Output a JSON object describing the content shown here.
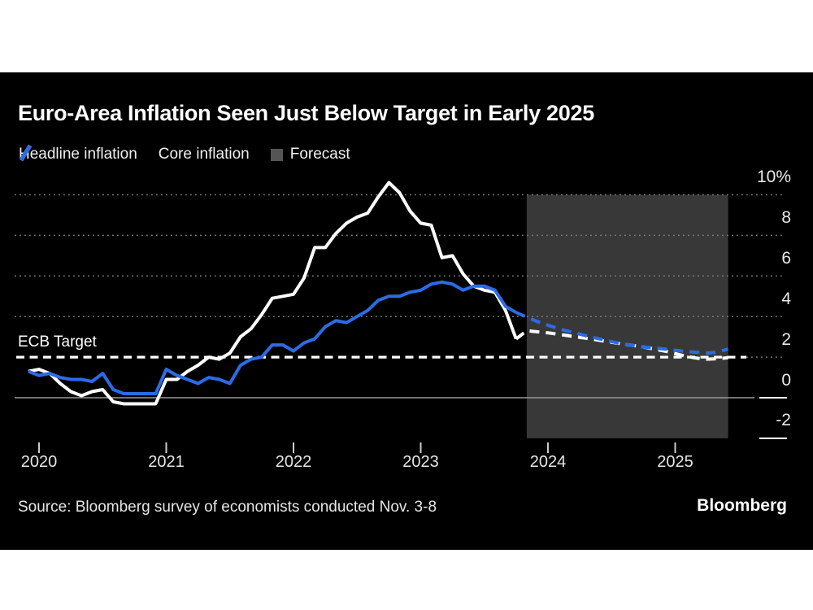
{
  "card": {
    "title": "Euro-Area Inflation Seen Just Below Target in Early 2025",
    "source": "Source: Bloomberg survey of economists conducted Nov. 3-8",
    "brand": "Bloomberg"
  },
  "legend": {
    "items": [
      {
        "label": "Headline inflation",
        "swatch": "line-slash",
        "color": "#ffffff"
      },
      {
        "label": "Core inflation",
        "swatch": "line-slash",
        "color": "#2b6be6"
      },
      {
        "label": "Forecast",
        "swatch": "box",
        "color": "#555555"
      }
    ]
  },
  "annotation": {
    "ecb_target_label": "ECB Target"
  },
  "colors": {
    "background": "#000000",
    "page": "#ffffff",
    "headline": "#ffffff",
    "core": "#2b6be6",
    "forecast_region": "#383838",
    "gridline": "#7d7d7d",
    "zero_line": "#999999"
  },
  "chart_data": {
    "type": "line",
    "title": "Euro-Area Inflation Seen Just Below Target in Early 2025",
    "x_start_month": "2019-12",
    "x_ticks": [
      "2020",
      "2021",
      "2022",
      "2023",
      "2024",
      "2025"
    ],
    "y_ticks": [
      {
        "label": "10%",
        "value": 10
      },
      {
        "label": "8",
        "value": 8
      },
      {
        "label": "6",
        "value": 6
      },
      {
        "label": "4",
        "value": 4
      },
      {
        "label": "2",
        "value": 2
      },
      {
        "label": "0",
        "value": 0
      },
      {
        "label": "-2",
        "value": -2
      }
    ],
    "ylim": [
      -2,
      10
    ],
    "grid_values": [
      10,
      8,
      6,
      4
    ],
    "ecb_target_value": 2,
    "forecast_window": {
      "start_index": 47,
      "end_index": 66
    },
    "series": [
      {
        "name": "Headline inflation",
        "color": "#ffffff",
        "dashed": false,
        "values": [
          1.3,
          1.4,
          1.2,
          0.7,
          0.3,
          0.1,
          0.3,
          0.4,
          -0.2,
          -0.3,
          -0.3,
          -0.3,
          -0.3,
          0.9,
          0.9,
          1.3,
          1.6,
          2.0,
          1.9,
          2.2,
          3.0,
          3.4,
          4.1,
          4.9,
          5.0,
          5.1,
          5.9,
          7.4,
          7.4,
          8.1,
          8.6,
          8.9,
          9.1,
          9.9,
          10.6,
          10.1,
          9.2,
          8.6,
          8.5,
          6.9,
          7.0,
          6.1,
          5.5,
          5.3,
          5.2,
          4.3,
          2.9
        ]
      },
      {
        "name": "Core inflation",
        "color": "#2b6be6",
        "dashed": false,
        "values": [
          1.3,
          1.1,
          1.2,
          1.0,
          0.9,
          0.9,
          0.8,
          1.2,
          0.4,
          0.2,
          0.2,
          0.2,
          0.2,
          1.4,
          1.1,
          0.9,
          0.7,
          1.0,
          0.9,
          0.7,
          1.6,
          1.9,
          2.0,
          2.6,
          2.6,
          2.3,
          2.7,
          2.9,
          3.5,
          3.8,
          3.7,
          4.0,
          4.3,
          4.8,
          5.0,
          5.0,
          5.2,
          5.3,
          5.6,
          5.7,
          5.6,
          5.3,
          5.5,
          5.5,
          5.3,
          4.5,
          4.2
        ]
      },
      {
        "name": "Headline inflation (forecast)",
        "color": "#ffffff",
        "dashed": true,
        "points": [
          [
            46,
            2.9
          ],
          [
            47,
            3.3
          ],
          [
            49,
            3.2
          ],
          [
            51,
            3.05
          ],
          [
            53,
            2.9
          ],
          [
            56,
            2.65
          ],
          [
            58,
            2.5
          ],
          [
            60,
            2.3
          ],
          [
            62,
            2.05
          ],
          [
            63,
            1.95
          ],
          [
            64,
            1.9
          ],
          [
            65,
            1.92
          ],
          [
            66,
            1.97
          ]
        ]
      },
      {
        "name": "Core inflation (forecast)",
        "color": "#2b6be6",
        "dashed": true,
        "points": [
          [
            46,
            4.2
          ],
          [
            48,
            3.75
          ],
          [
            50,
            3.4
          ],
          [
            53,
            3.0
          ],
          [
            56,
            2.65
          ],
          [
            58,
            2.5
          ],
          [
            60,
            2.4
          ],
          [
            62,
            2.28
          ],
          [
            64,
            2.2
          ],
          [
            65,
            2.25
          ],
          [
            66,
            2.4
          ]
        ]
      }
    ]
  }
}
